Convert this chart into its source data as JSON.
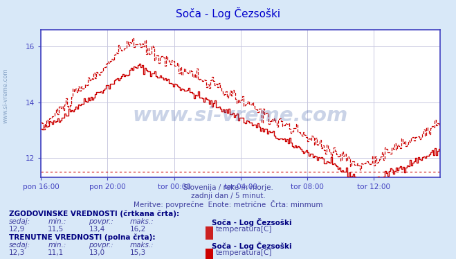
{
  "title": "Soča - Log Čezsoški",
  "subtitle1": "Slovenija / reke in morje.",
  "subtitle2": "zadnji dan / 5 minut.",
  "subtitle3": "Meritve: povprečne  Enote: metrične  Črta: minmum",
  "xlabel_ticks": [
    "pon 16:00",
    "pon 20:00",
    "tor 00:00",
    "tor 04:00",
    "tor 08:00",
    "tor 12:00"
  ],
  "xtick_positions": [
    0,
    48,
    96,
    144,
    192,
    240
  ],
  "ylabel_ticks": [
    "12",
    "14",
    "16"
  ],
  "ytick_positions": [
    12,
    14,
    16
  ],
  "ylim": [
    11.3,
    16.6
  ],
  "xlim": [
    0,
    288
  ],
  "grid_x_positions": [
    0,
    48,
    96,
    144,
    192,
    240,
    288
  ],
  "hline_min": 11.5,
  "bg_color": "#d8e8f8",
  "plot_bg_color": "#ffffff",
  "grid_color": "#c8c8e0",
  "title_color": "#0000cc",
  "axis_color": "#4040c0",
  "line_color": "#cc0000",
  "text_color": "#4040a0",
  "legend_bold_color": "#000080",
  "watermark_plot": "www.si-vreme.com",
  "watermark_side": "www.si-vreme.com",
  "hist_label": "ZGODOVINSKE VREDNOSTI (črtkana črta):",
  "hist_headers": [
    "sedaj:",
    "min.:",
    "povpr.:",
    "maks.:"
  ],
  "hist_values": [
    "12,9",
    "11,5",
    "13,4",
    "16,2"
  ],
  "hist_station": "Soča - Log Čezsoški",
  "hist_series": "temperatura[C]",
  "curr_label": "TRENUTNE VREDNOSTI (polna črta):",
  "curr_headers": [
    "sedaj:",
    "min.:",
    "povpr.:",
    "maks.:"
  ],
  "curr_values": [
    "12,3",
    "11,1",
    "13,0",
    "15,3"
  ],
  "curr_station": "Soča - Log Čezsoški",
  "curr_series": "temperatura[C]",
  "hist_swatch_color": "#cc2222",
  "curr_swatch_color": "#cc0000"
}
